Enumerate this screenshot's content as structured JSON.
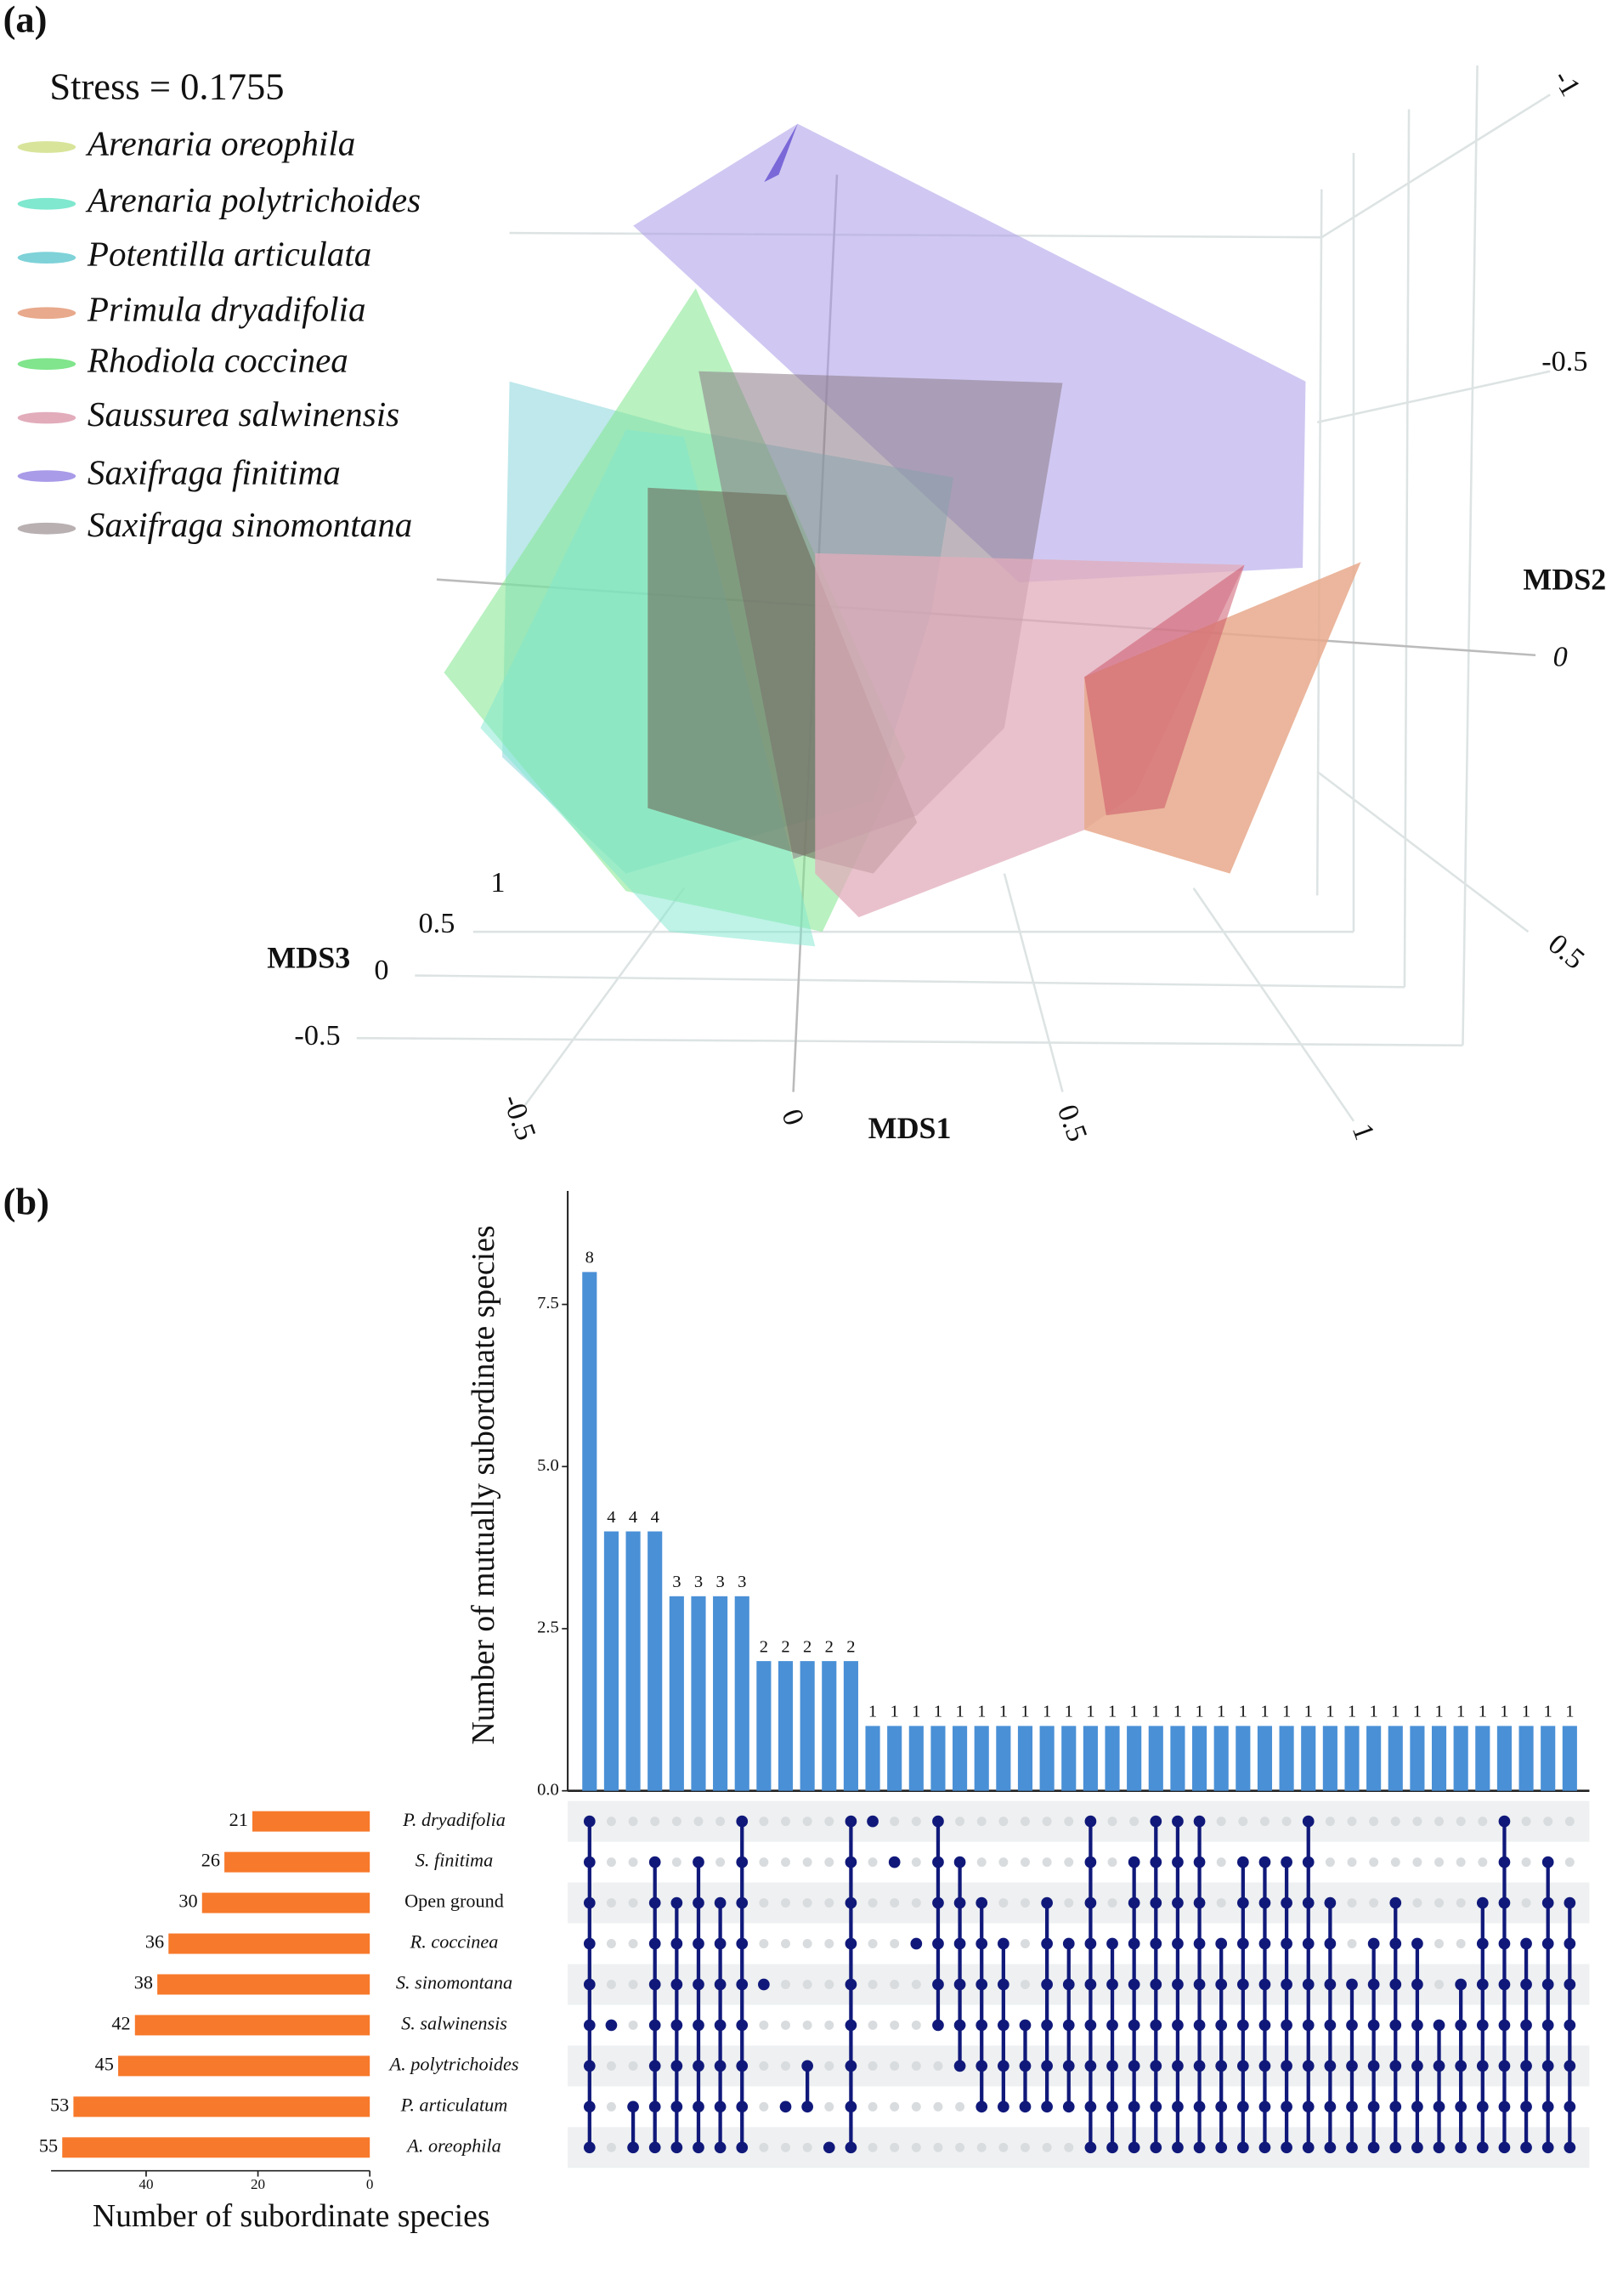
{
  "panel_a": {
    "label": "(a)",
    "stress": "Stress = 0.1755",
    "legend": [
      {
        "name": "Arenaria oreophila",
        "color": "#d8e49a"
      },
      {
        "name": "Arenaria polytrichoides",
        "color": "#7fe8cf"
      },
      {
        "name": "Potentilla articulata",
        "color": "#7ed2d8"
      },
      {
        "name": "Primula dryadifolia",
        "color": "#e8a98c"
      },
      {
        "name": "Rhodiola coccinea",
        "color": "#80e58c"
      },
      {
        "name": "Saussurea salwinensis",
        "color": "#e2acbb"
      },
      {
        "name": "Saxifraga finitima",
        "color": "#a99be8"
      },
      {
        "name": "Saxifraga sinomontana",
        "color": "#b9b0b2"
      }
    ],
    "mds1_title": "MDS1",
    "mds2_title": "MDS2",
    "mds3_title": "MDS3",
    "mds1_ticks": [
      -0.5,
      0,
      0.5,
      1
    ],
    "mds2_ticks": [
      -1,
      -0.5,
      0,
      0.5
    ],
    "mds3_ticks": [
      1,
      0.5,
      0,
      -0.5
    ]
  },
  "chart_data": {
    "type": "upset",
    "label": "(b)",
    "ylabel": "Number of mutually subordinate species",
    "ylim": [
      0,
      9.25
    ],
    "yticks": [
      {
        "value": 0,
        "label": "0.0"
      },
      2.5,
      {
        "value": 5,
        "label": "5.0"
      },
      7.5
    ],
    "values": [
      8,
      4,
      4,
      4,
      3,
      3,
      3,
      3,
      2,
      2,
      2,
      2,
      2,
      1,
      1,
      1,
      1,
      1,
      1,
      1,
      1,
      1,
      1,
      1,
      1,
      1,
      1,
      1,
      1,
      1,
      1,
      1,
      1,
      1,
      1,
      1,
      1,
      1,
      1,
      1,
      1,
      1,
      1,
      1,
      1,
      1
    ],
    "color": "#4a90d6",
    "sets": [
      "P. dryadifolia",
      "S. finitima",
      "Open ground",
      "R. coccinea",
      "S. sinomontana",
      "S. salwinensis",
      "A. polytrichoides",
      "P. articulatum",
      "A. oreophila"
    ],
    "set_sizes": [
      21,
      26,
      30,
      36,
      38,
      42,
      45,
      53,
      55
    ],
    "set_color": "#f7792b",
    "set_xlim": [
      0,
      57
    ],
    "set_xticks": [
      0,
      20,
      40
    ],
    "set_reversed": true,
    "set_xlabel": "Number of subordinate species",
    "dot_color": "#10197a",
    "membership": [
      [
        0,
        1,
        2,
        3,
        4,
        5,
        6,
        7,
        8
      ],
      [
        5
      ],
      [
        7,
        8
      ],
      [
        1,
        2,
        3,
        4,
        5,
        6,
        7,
        8
      ],
      [
        2,
        3,
        4,
        5,
        6,
        7,
        8
      ],
      [
        1,
        2,
        3,
        4,
        5,
        6,
        7,
        8
      ],
      [
        2,
        3,
        4,
        5,
        6,
        7,
        8
      ],
      [
        0,
        1,
        2,
        3,
        4,
        5,
        6,
        7,
        8
      ],
      [
        4
      ],
      [
        7
      ],
      [
        6,
        7
      ],
      [
        8
      ],
      [
        0,
        1,
        2,
        3,
        4,
        5,
        6,
        7,
        8
      ],
      [
        0
      ],
      [
        1
      ],
      [
        3
      ],
      [
        0,
        1,
        2,
        3,
        4,
        5
      ],
      [
        1,
        2,
        3,
        4,
        5,
        6
      ],
      [
        2,
        3,
        4,
        5,
        6,
        7
      ],
      [
        3,
        4,
        5,
        6,
        7
      ],
      [
        5,
        6,
        7
      ],
      [
        2,
        3,
        4,
        5,
        6,
        7
      ],
      [
        3,
        4,
        5,
        6,
        7
      ],
      [
        0,
        1,
        2,
        3,
        4,
        5,
        6,
        7,
        8
      ],
      [
        3,
        4,
        5,
        6,
        7,
        8
      ],
      [
        1,
        2,
        3,
        4,
        5,
        6,
        7,
        8
      ],
      [
        0,
        1,
        2,
        3,
        4,
        5,
        6,
        7,
        8
      ],
      [
        0,
        1,
        2,
        3,
        4,
        5,
        6,
        7,
        8
      ],
      [
        0,
        1,
        2,
        3,
        4,
        5,
        6,
        7,
        8
      ],
      [
        3,
        4,
        5,
        6,
        7,
        8
      ],
      [
        1,
        2,
        3,
        4,
        5,
        6,
        7,
        8
      ],
      [
        1,
        2,
        3,
        4,
        5,
        6,
        7,
        8
      ],
      [
        1,
        2,
        3,
        4,
        5,
        6,
        7,
        8
      ],
      [
        0,
        1,
        2,
        3,
        4,
        5,
        6,
        7,
        8
      ],
      [
        2,
        3,
        4,
        5,
        6,
        7,
        8
      ],
      [
        4,
        5,
        6,
        7,
        8
      ],
      [
        3,
        4,
        5,
        6,
        7,
        8
      ],
      [
        2,
        3,
        4,
        5,
        6,
        7,
        8
      ],
      [
        3,
        4,
        5,
        6,
        7,
        8
      ],
      [
        5,
        6,
        7,
        8
      ],
      [
        4,
        5,
        6,
        7,
        8
      ],
      [
        2,
        3,
        4,
        5,
        6,
        7,
        8
      ],
      [
        0,
        1,
        2,
        3,
        4,
        5,
        6,
        7,
        8
      ],
      [
        3,
        4,
        5,
        6,
        7,
        8
      ],
      [
        1,
        2,
        3,
        4,
        5,
        6,
        7,
        8
      ],
      [
        2,
        3,
        4,
        5,
        6,
        7,
        8
      ]
    ]
  }
}
